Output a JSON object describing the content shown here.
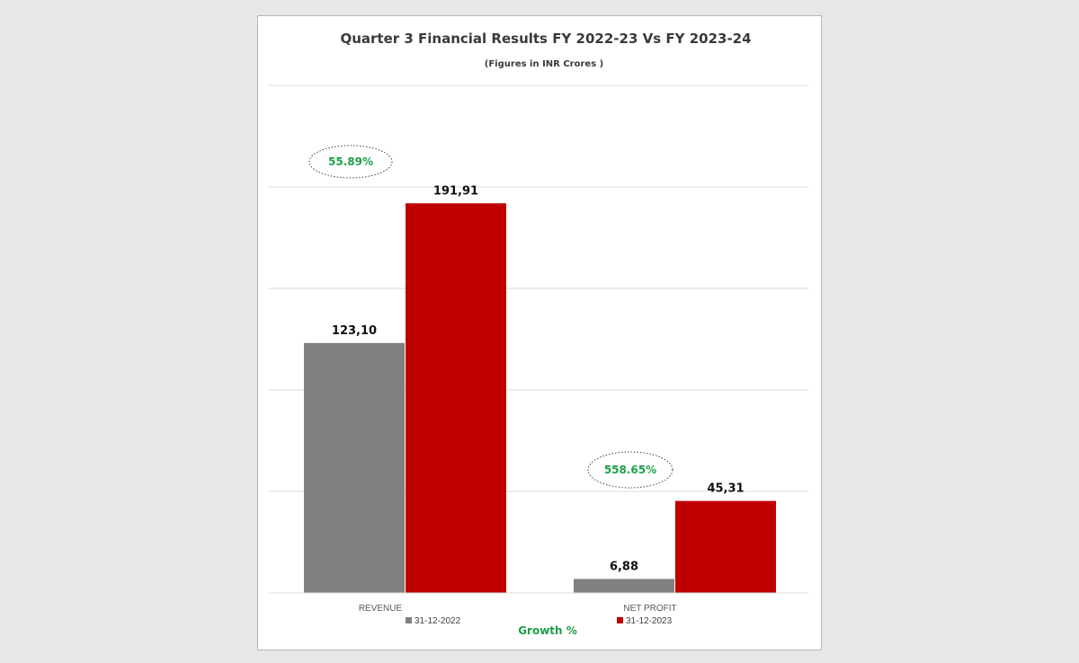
{
  "chart_data": {
    "type": "bar",
    "title": "Quarter 3 Financial Results  FY 2022-23 Vs FY 2023-24",
    "subtitle": "(Figures in INR Crores )",
    "categories": [
      "REVENUE",
      "NET PROFIT"
    ],
    "series": [
      {
        "name": "31-12-2022",
        "color": "#808080",
        "values": [
          123.1,
          6.88
        ],
        "labels": [
          "123,10",
          "6,88"
        ]
      },
      {
        "name": "31-12-2023",
        "color": "#c00000",
        "values": [
          191.91,
          45.31
        ],
        "labels": [
          "191,91",
          "45,31"
        ]
      }
    ],
    "growth": [
      "55.89%",
      "558.65%"
    ],
    "growth_legend": "Growth %",
    "growth_color": "#1f9e4a",
    "ylim": [
      0,
      250
    ],
    "y_gridlines": [
      50,
      100,
      150,
      200,
      250
    ],
    "grid": true,
    "legend_position": "bottom",
    "xlabel": "",
    "ylabel": ""
  }
}
